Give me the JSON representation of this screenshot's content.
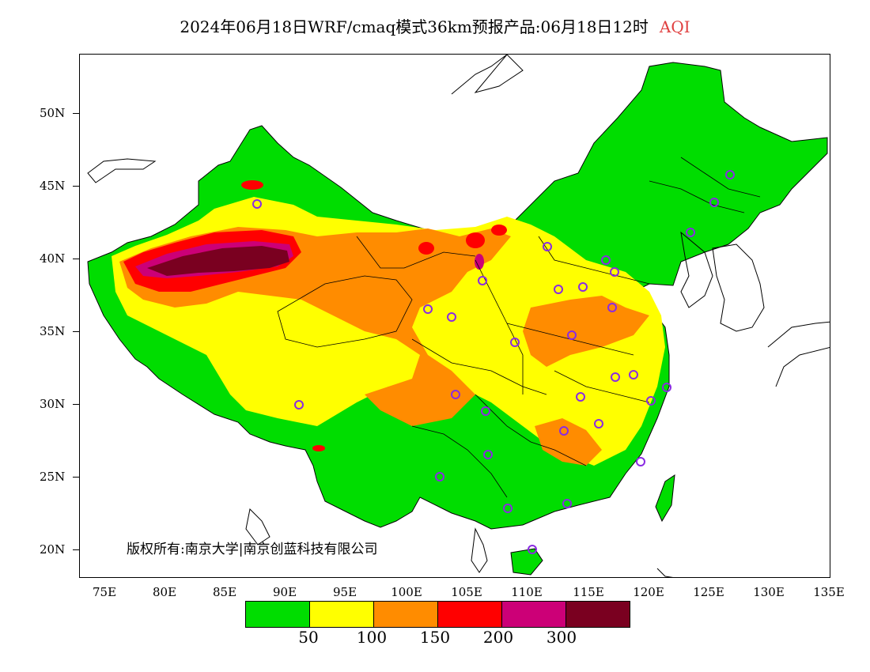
{
  "title": {
    "text": "2024年06月18日WRF/cmaq模式36km预报产品:06月18日12时",
    "variable": "AQI",
    "variable_color": "#e04040"
  },
  "map": {
    "projection": "lat-lon",
    "lon_range": [
      73,
      135
    ],
    "lat_range": [
      18,
      54
    ],
    "y_ticks": [
      "50N",
      "45N",
      "40N",
      "35N",
      "30N",
      "25N",
      "20N"
    ],
    "x_ticks": [
      "75E",
      "80E",
      "85E",
      "90E",
      "95E",
      "100E",
      "105E",
      "110E",
      "115E",
      "120E",
      "125E",
      "130E",
      "135E"
    ],
    "copyright": "版权所有:南京大学|南京创蓝科技有限公司",
    "station_marker_color": "#8a2be2"
  },
  "legend": {
    "colors": [
      "#00dd00",
      "#ffff00",
      "#ff8c00",
      "#ff0000",
      "#cc0077",
      "#7a0020"
    ],
    "labels": [
      "50",
      "100",
      "150",
      "200",
      "300"
    ]
  }
}
